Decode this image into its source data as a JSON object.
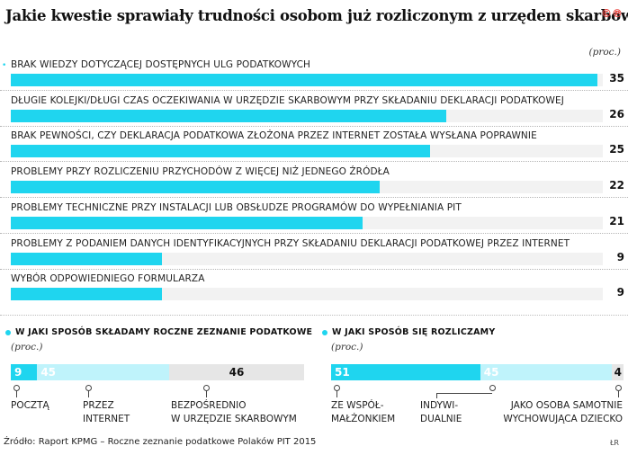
{
  "header": {
    "title": "Jakie kwestie sprawiały trudności osobom już rozliczonym z urzędem skarbowym",
    "logo": "©℗"
  },
  "chart_data": [
    {
      "type": "bar",
      "orientation": "horizontal",
      "title": "Jakie kwestie sprawiały trudności osobom już rozliczonym z urzędem skarbowym",
      "unit": "(proc.)",
      "categories": [
        "BRAK WIEDZY DOTYCZĄCEJ DOSTĘPNYCH ULG PODATKOWYCH",
        "DŁUGIE KOLEJKI/DŁUGI CZAS OCZEKIWANIA W URZĘDZIE SKARBOWYM PRZY SKŁADANIU DEKLARACJI PODATKOWEJ",
        "BRAK PEWNOŚCI, CZY DEKLARACJA PODATKOWA ZŁOŻONA PRZEZ INTERNET ZOSTAŁA WYSŁANA POPRAWNIE",
        "PROBLEMY PRZY ROZLICZENIU PRZYCHODÓW Z WIĘCEJ NIŻ JEDNEGO ŹRÓDŁA",
        "PROBLEMY TECHNICZNE PRZY INSTALACJI LUB OBSŁUDZE PROGRAMÓW DO WYPEŁNIANIA PIT",
        "PROBLEMY Z PODANIEM DANYCH IDENTYFIKACYJNYCH PRZY SKŁADANIU DEKLARACJI PODATKOWEJ PRZEZ INTERNET",
        "WYBÓR ODPOWIEDNIEGO FORMULARZA"
      ],
      "values": [
        35,
        26,
        25,
        22,
        21,
        9,
        9
      ],
      "xlim": [
        0,
        35
      ],
      "color": "#1fd5ef"
    },
    {
      "type": "bar",
      "orientation": "stacked-100",
      "title": "W JAKI SPOSÓB SKŁADAMY ROCZNE ZEZNANIE PODATKOWE",
      "unit": "(proc.)",
      "segments": [
        {
          "label": "POCZTĄ",
          "value": 9,
          "color": "#1fd5ef"
        },
        {
          "label": "PRZEZ INTERNET",
          "value": 45,
          "color": "#bff3fb"
        },
        {
          "label": "BEZPOŚREDNIO W URZĘDZIE SKARBOWYM",
          "value": 46,
          "color": "#e6e6e6"
        }
      ]
    },
    {
      "type": "bar",
      "orientation": "stacked-100",
      "title": "W JAKI SPOSÓB SIĘ ROZLICZAMY",
      "unit": "(proc.)",
      "segments": [
        {
          "label": "ZE WSPÓŁMAŁŻONKIEM",
          "value": 51,
          "color": "#1fd5ef"
        },
        {
          "label": "INDYWIDUALNIE",
          "value": 45,
          "color": "#bff3fb"
        },
        {
          "label": "JAKO OSOBA SAMOTNIE WYCHOWUJĄCA DZIECKO",
          "value": 4,
          "color": "#e6e6e6"
        }
      ]
    }
  ],
  "left_labels": {
    "poczta": "POCZTĄ",
    "internet_1": "PRZEZ",
    "internet_2": "INTERNET",
    "urzad_1": "BEZPOŚREDNIO",
    "urzad_2": "W URZĘDZIE SKARBOWYM"
  },
  "right_labels": {
    "wspol_1": "ZE WSPÓŁ-",
    "wspol_2": "MAŁŻONKIEM",
    "indyw_1": "INDYWI-",
    "indyw_2": "DUALNIE",
    "samotnie_1": "JAKO OSOBA SAMOTNIE",
    "samotnie_2": "WYCHOWUJĄCA DZIECKO"
  },
  "footer": {
    "source": "Źródło: Raport KPMG – Roczne zeznanie podatkowe Polaków PIT 2015",
    "credit": "ŁR"
  }
}
